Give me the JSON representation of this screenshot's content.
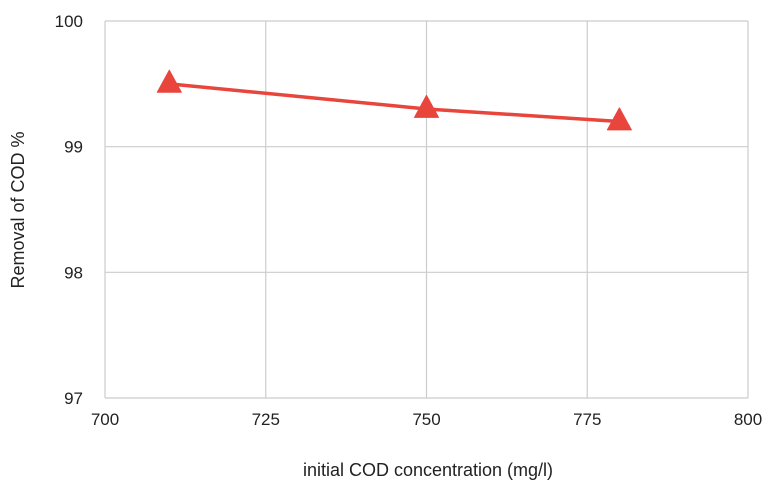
{
  "chart_data": {
    "type": "line",
    "title": "",
    "xlabel": "initial COD concentration (mg/l)",
    "ylabel": "Removal of COD %",
    "xlim": [
      700,
      800
    ],
    "ylim": [
      97,
      100
    ],
    "x_ticks": [
      "700",
      "725",
      "750",
      "775",
      "800"
    ],
    "y_ticks": [
      "97",
      "98",
      "99",
      "100"
    ],
    "grid": true,
    "legend": "none",
    "series": [
      {
        "x": [
          710,
          750,
          780
        ],
        "y": [
          99.5,
          99.3,
          99.2
        ],
        "color": "#e8453c",
        "marker": "triangle"
      }
    ]
  }
}
